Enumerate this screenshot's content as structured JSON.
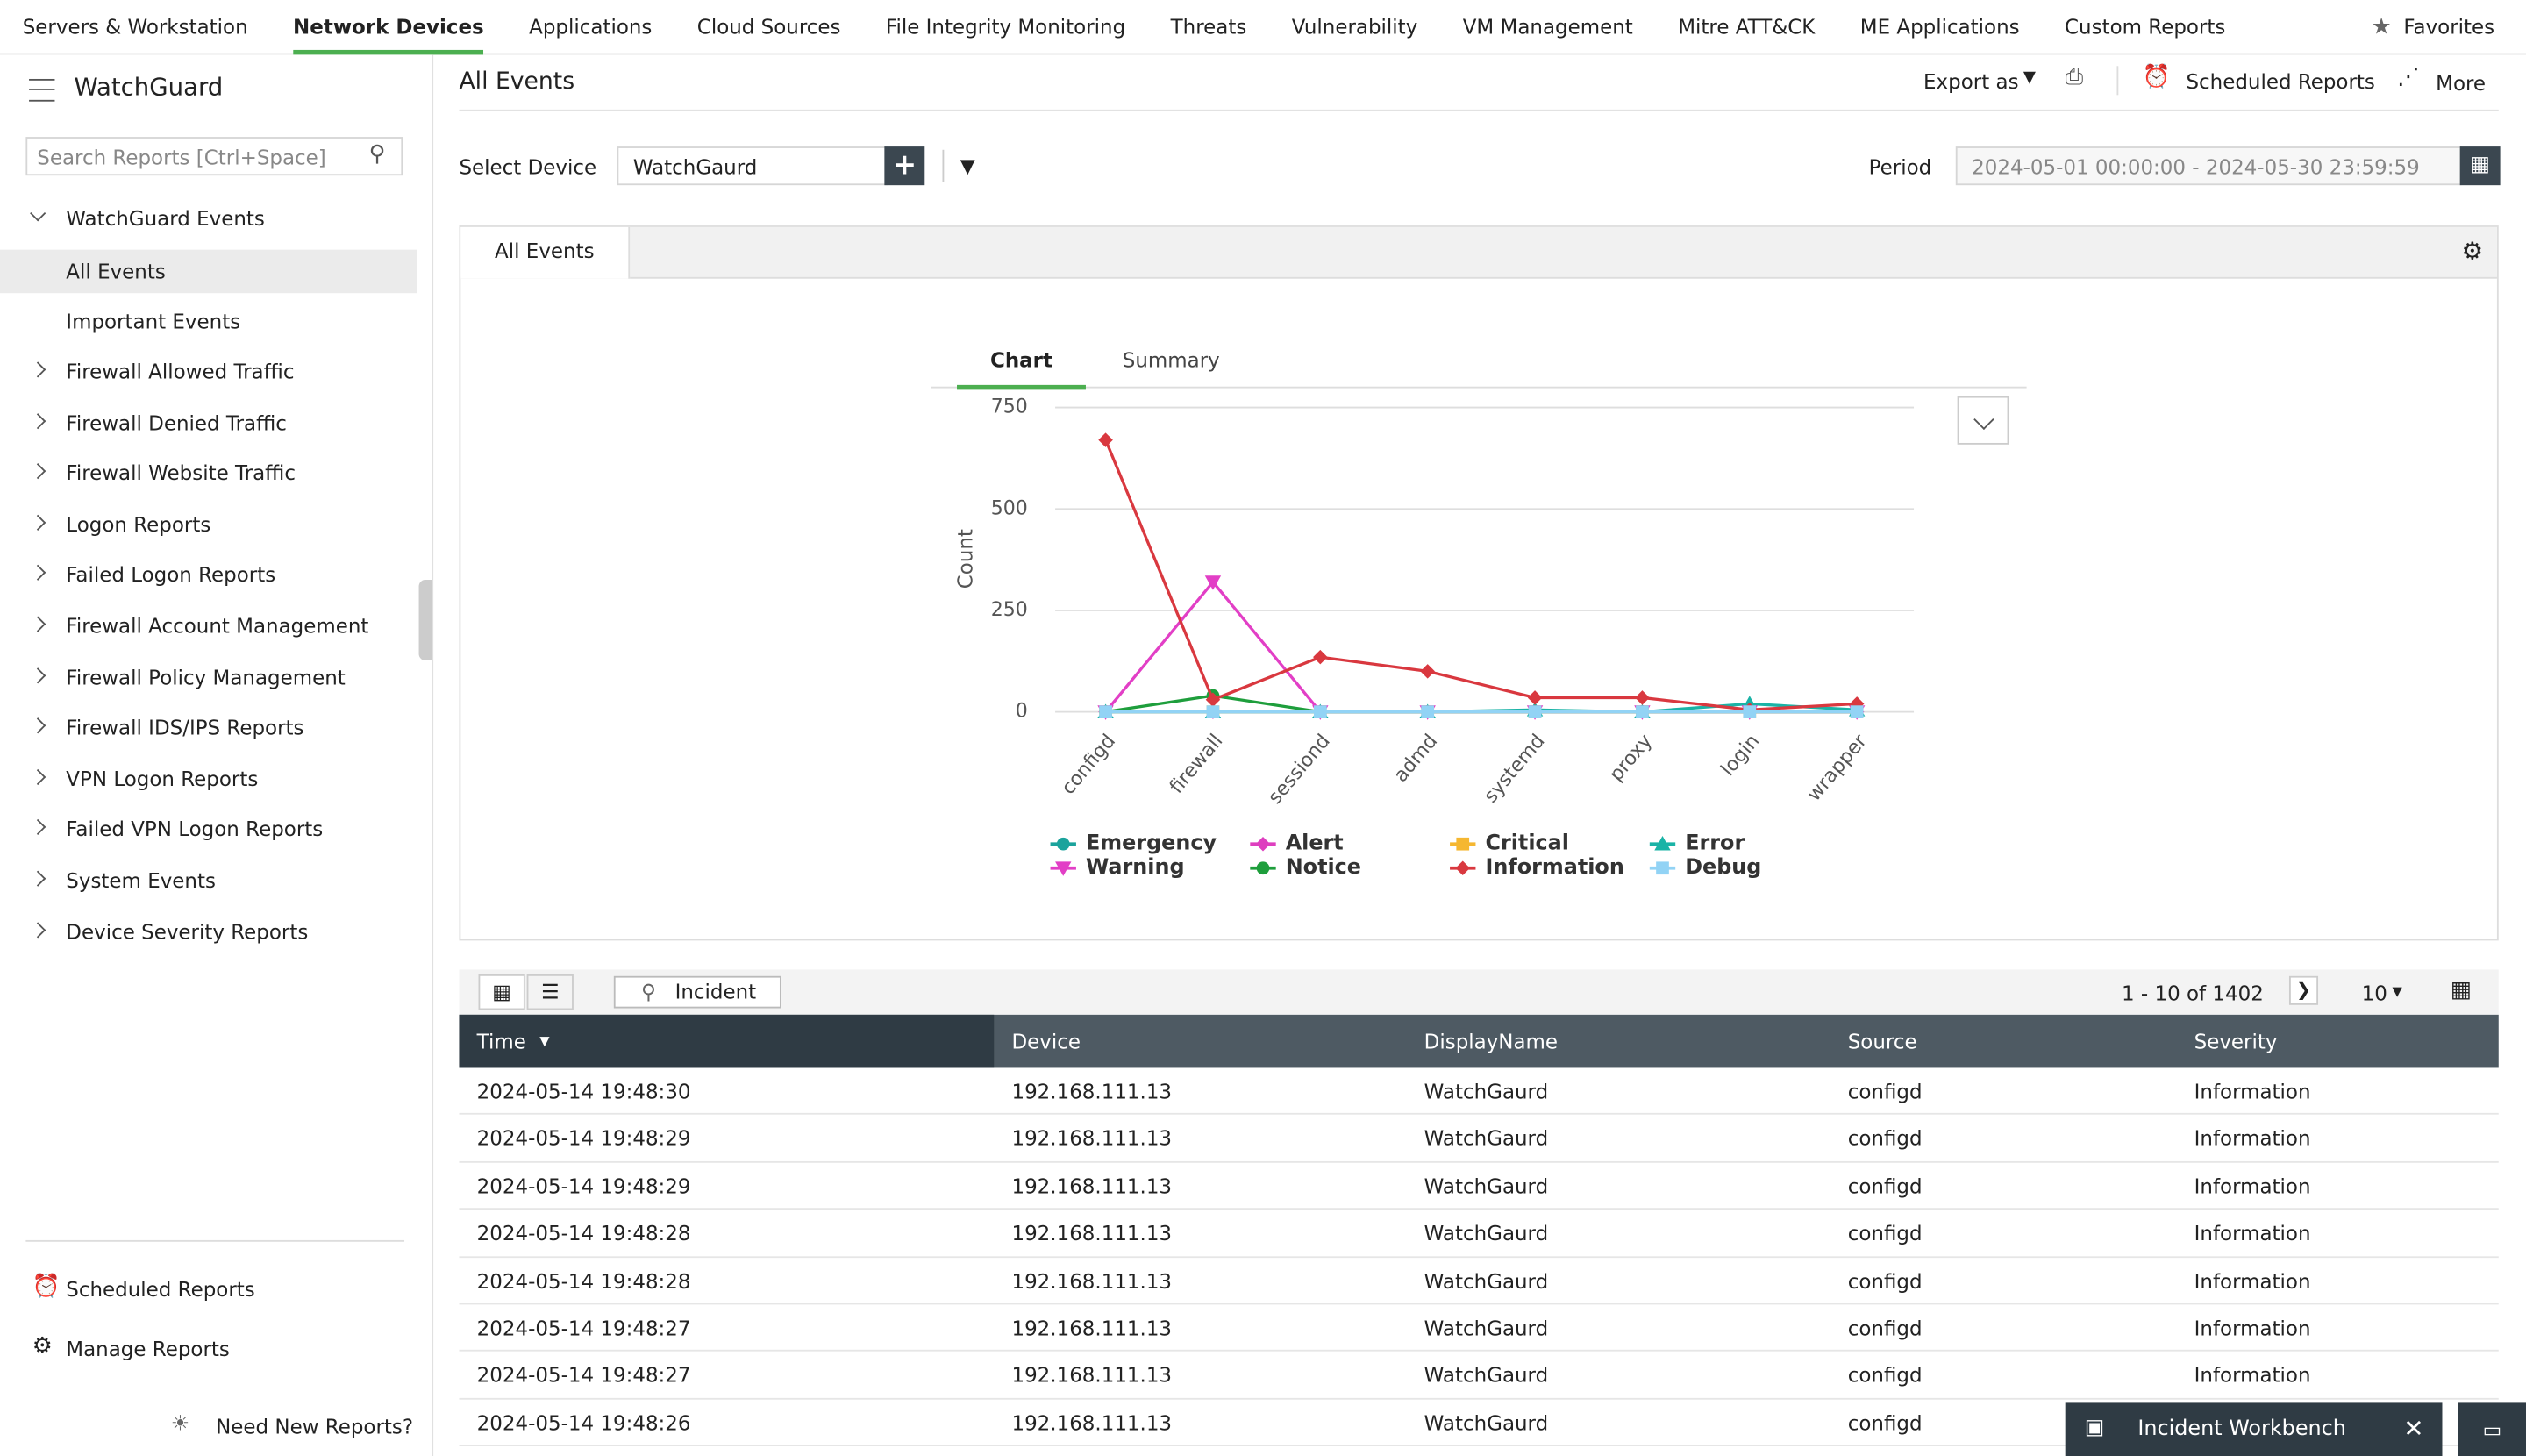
{
  "top_nav": {
    "items": [
      "Servers & Workstation",
      "Network Devices",
      "Applications",
      "Cloud Sources",
      "File Integrity Monitoring",
      "Threats",
      "Vulnerability",
      "VM Management",
      "Mitre ATT&CK",
      "ME Applications",
      "Custom Reports"
    ],
    "active_index": 1,
    "favorites": "Favorites"
  },
  "sidebar": {
    "title": "WatchGuard",
    "search_placeholder": "Search Reports [Ctrl+Space]",
    "group": "WatchGuard Events",
    "group_items": [
      "All Events",
      "Important Events"
    ],
    "active_index": 0,
    "items": [
      "Firewall Allowed Traffic",
      "Firewall Denied Traffic",
      "Firewall Website Traffic",
      "Logon Reports",
      "Failed Logon Reports",
      "Firewall Account Management",
      "Firewall Policy Management",
      "Firewall IDS/IPS Reports",
      "VPN Logon Reports",
      "Failed VPN Logon Reports",
      "System Events",
      "Device Severity Reports"
    ],
    "scheduled": "Scheduled Reports",
    "manage": "Manage Reports",
    "need_new": "Need New Reports?"
  },
  "header": {
    "title": "All Events",
    "export": "Export as",
    "scheduled": "Scheduled Reports",
    "more": "More"
  },
  "filters": {
    "device_label": "Select Device",
    "device": "WatchGaurd",
    "period_label": "Period",
    "period": "2024-05-01 00:00:00 - 2024-05-30 23:59:59"
  },
  "tab": "All Events",
  "chart_tabs": [
    "Chart",
    "Summary"
  ],
  "chart_data": {
    "type": "line",
    "y_label": "Count",
    "categories": [
      "configd",
      "firewall",
      "sessiond",
      "admd",
      "systemd",
      "proxy",
      "login",
      "wrapper"
    ],
    "ylim": [
      0,
      750
    ],
    "yticks": [
      0,
      250,
      500,
      750
    ],
    "grid": true,
    "series": [
      {
        "name": "Emergency",
        "color": "#1ba39c",
        "marker": "circle",
        "values": [
          0,
          0,
          0,
          0,
          0,
          0,
          0,
          0
        ]
      },
      {
        "name": "Alert",
        "color": "#de3fbf",
        "marker": "diamond",
        "values": [
          0,
          0,
          0,
          0,
          0,
          0,
          0,
          0
        ]
      },
      {
        "name": "Critical",
        "color": "#f5b731",
        "marker": "square",
        "values": [
          0,
          0,
          0,
          0,
          0,
          0,
          0,
          0
        ]
      },
      {
        "name": "Error",
        "color": "#1ab3a6",
        "marker": "triangle",
        "values": [
          0,
          0,
          0,
          0,
          5,
          0,
          20,
          5
        ]
      },
      {
        "name": "Warning",
        "color": "#e23fc6",
        "marker": "triangle-down",
        "values": [
          0,
          320,
          0,
          0,
          0,
          0,
          0,
          0
        ]
      },
      {
        "name": "Notice",
        "color": "#1e9e3c",
        "marker": "circle",
        "values": [
          0,
          40,
          0,
          0,
          0,
          0,
          0,
          0
        ]
      },
      {
        "name": "Information",
        "color": "#d9383f",
        "marker": "diamond",
        "values": [
          670,
          30,
          135,
          100,
          35,
          35,
          5,
          20
        ]
      },
      {
        "name": "Debug",
        "color": "#92d3f5",
        "marker": "square",
        "values": [
          0,
          0,
          0,
          0,
          0,
          0,
          0,
          0
        ]
      }
    ]
  },
  "table": {
    "incident": "Incident",
    "pagination": "1 - 10 of 1402",
    "page_size": "10",
    "columns": [
      "Time",
      "Device",
      "DisplayName",
      "Source",
      "Severity"
    ],
    "rows": [
      [
        "2024-05-14 19:48:30",
        "192.168.111.13",
        "WatchGaurd",
        "configd",
        "Information"
      ],
      [
        "2024-05-14 19:48:29",
        "192.168.111.13",
        "WatchGaurd",
        "configd",
        "Information"
      ],
      [
        "2024-05-14 19:48:29",
        "192.168.111.13",
        "WatchGaurd",
        "configd",
        "Information"
      ],
      [
        "2024-05-14 19:48:28",
        "192.168.111.13",
        "WatchGaurd",
        "configd",
        "Information"
      ],
      [
        "2024-05-14 19:48:28",
        "192.168.111.13",
        "WatchGaurd",
        "configd",
        "Information"
      ],
      [
        "2024-05-14 19:48:27",
        "192.168.111.13",
        "WatchGaurd",
        "configd",
        "Information"
      ],
      [
        "2024-05-14 19:48:27",
        "192.168.111.13",
        "WatchGaurd",
        "configd",
        "Information"
      ],
      [
        "2024-05-14 19:48:26",
        "192.168.111.13",
        "WatchGaurd",
        "configd",
        "Information"
      ]
    ]
  },
  "workbench": "Incident Workbench"
}
